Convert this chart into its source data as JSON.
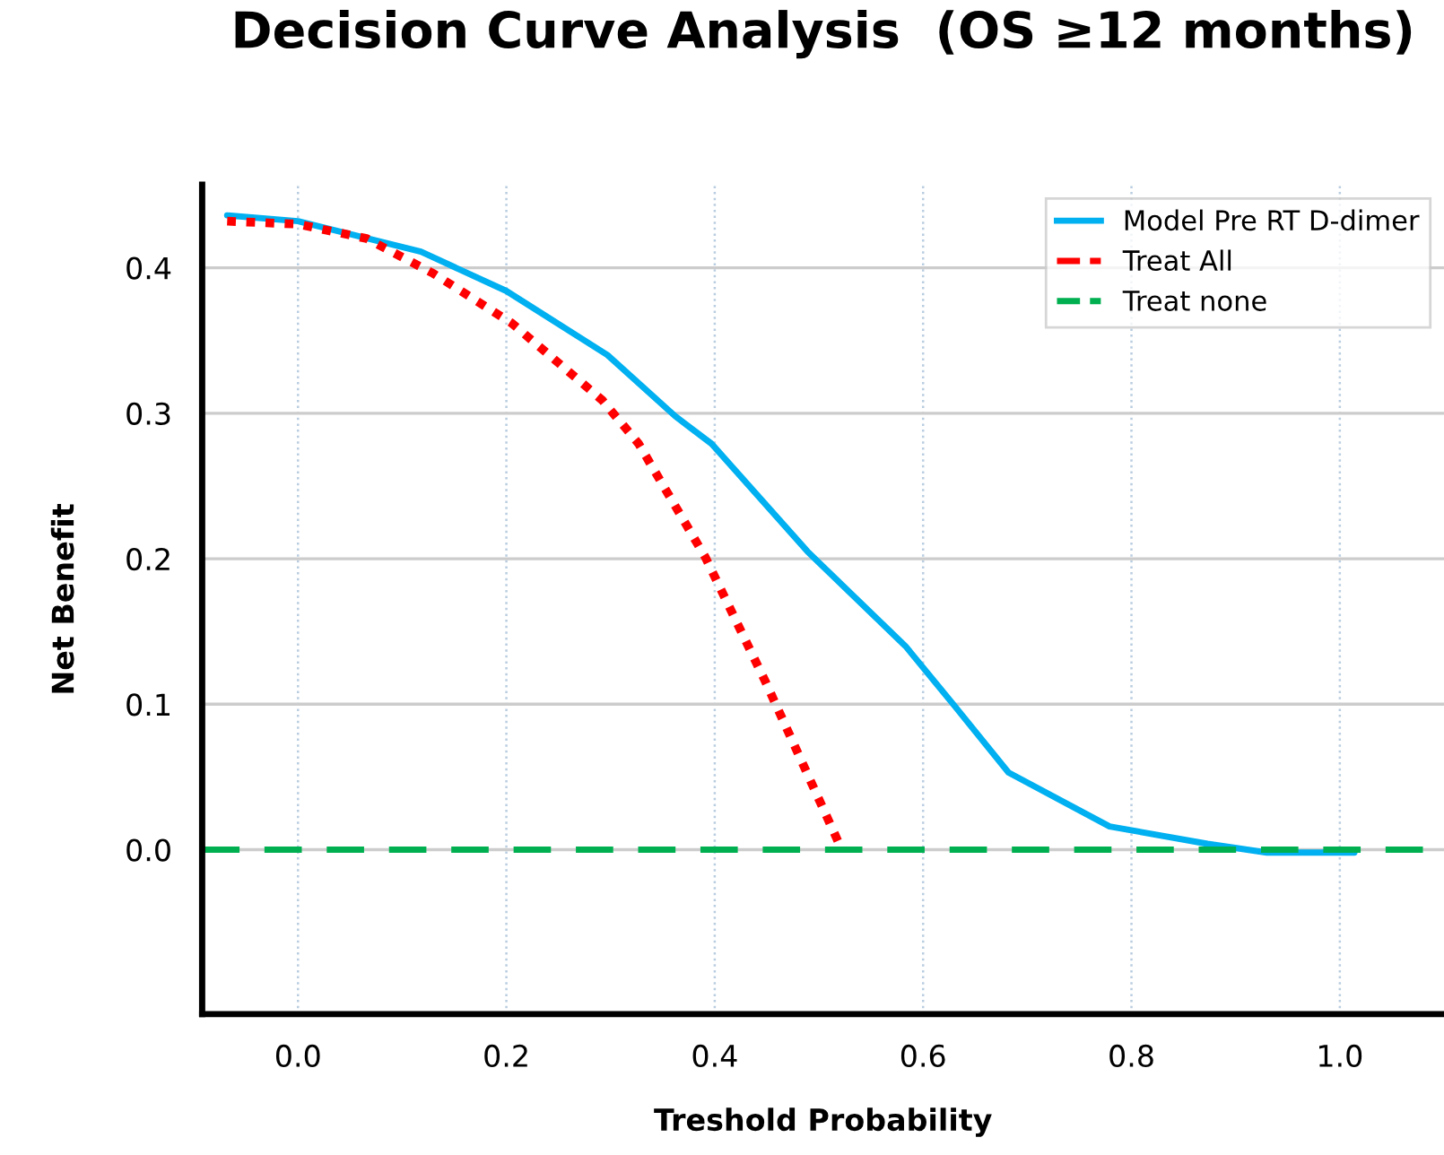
{
  "chart_data": {
    "type": "line",
    "title": "Decision Curve Analysis  (OS ≥12 months)",
    "xlabel": "Treshold Probability",
    "ylabel": "Net Benefit",
    "series": [
      {
        "name": "Model Pre RT D-dimer",
        "color": "#00b0f0",
        "line_style": "solid",
        "x": [
          -0.068,
          0,
          0.118,
          0.2,
          0.297,
          0.362,
          0.397,
          0.489,
          0.583,
          0.63,
          0.682,
          0.779,
          0.873,
          0.93,
          1.014
        ],
        "values": [
          0.436,
          0.432,
          0.411,
          0.384,
          0.34,
          0.298,
          0.279,
          0.205,
          0.14,
          0.099,
          0.053,
          0.016,
          0.004,
          -0.002,
          -0.002
        ]
      },
      {
        "name": "Treat All",
        "color": "#ff0000",
        "line_style": "dotted",
        "x": [
          -0.068,
          0,
          0.066,
          0.13,
          0.205,
          0.292,
          0.327,
          0.391,
          0.449,
          0.522
        ],
        "values": [
          0.432,
          0.43,
          0.42,
          0.396,
          0.362,
          0.309,
          0.279,
          0.201,
          0.115,
          0.0
        ]
      },
      {
        "name": "Treat none",
        "color": "#00b050",
        "line_style": "dashed",
        "x": [
          -0.092,
          1.1
        ],
        "values": [
          0,
          0
        ]
      }
    ],
    "xlim": [
      -0.092,
      1.1
    ],
    "ylim": [
      -0.113,
      0.457
    ],
    "xticks": [
      {
        "value": 0,
        "label": "0.0"
      },
      {
        "value": 0.2,
        "label": "0.2"
      },
      {
        "value": 0.4,
        "label": "0.4"
      },
      {
        "value": 0.6,
        "label": "0.6"
      },
      {
        "value": 0.8,
        "label": "0.8"
      },
      {
        "value": 1.0,
        "label": "1.0"
      }
    ],
    "yticks": [
      {
        "value": 0,
        "label": "0.0"
      },
      {
        "value": 0.1,
        "label": "0.1"
      },
      {
        "value": 0.2,
        "label": "0.2"
      },
      {
        "value": 0.3,
        "label": "0.3"
      },
      {
        "value": 0.4,
        "label": "0.4"
      }
    ],
    "grid": true,
    "legend": "top right",
    "marker": "none"
  }
}
